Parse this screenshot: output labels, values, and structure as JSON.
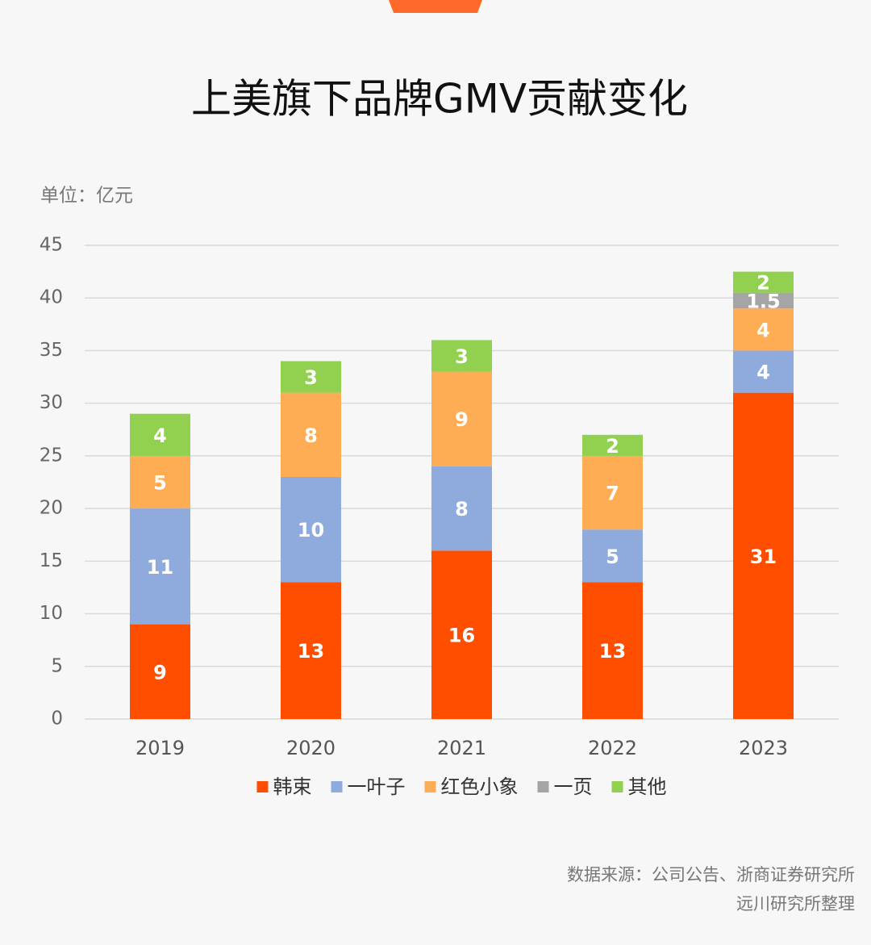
{
  "chart_data": {
    "type": "stacked_bar",
    "title": "上美旗下品牌GMV贡献变化",
    "unit_label": "单位：亿元",
    "categories": [
      "2019",
      "2020",
      "2021",
      "2022",
      "2023"
    ],
    "series": [
      {
        "name": "韩束",
        "color": "#ff4e00",
        "values": [
          9,
          13,
          16,
          13,
          31
        ]
      },
      {
        "name": "一叶子",
        "color": "#8faadc",
        "values": [
          11,
          10,
          8,
          5,
          4
        ]
      },
      {
        "name": "红色小象",
        "color": "#ffad55",
        "values": [
          5,
          8,
          9,
          7,
          4
        ]
      },
      {
        "name": "一页",
        "color": "#a5a5a5",
        "values": [
          null,
          null,
          null,
          null,
          1.5
        ]
      },
      {
        "name": "其他",
        "color": "#92d050",
        "values": [
          4,
          3,
          3,
          2,
          2
        ]
      }
    ],
    "ylim": [
      0,
      45
    ],
    "yticks": [
      0,
      5,
      10,
      15,
      20,
      25,
      30,
      35,
      40,
      45
    ],
    "grid": true,
    "legend": "bottom",
    "source": [
      "数据来源：公司公告、浙商证券研究所",
      "远川研究所整理"
    ]
  }
}
